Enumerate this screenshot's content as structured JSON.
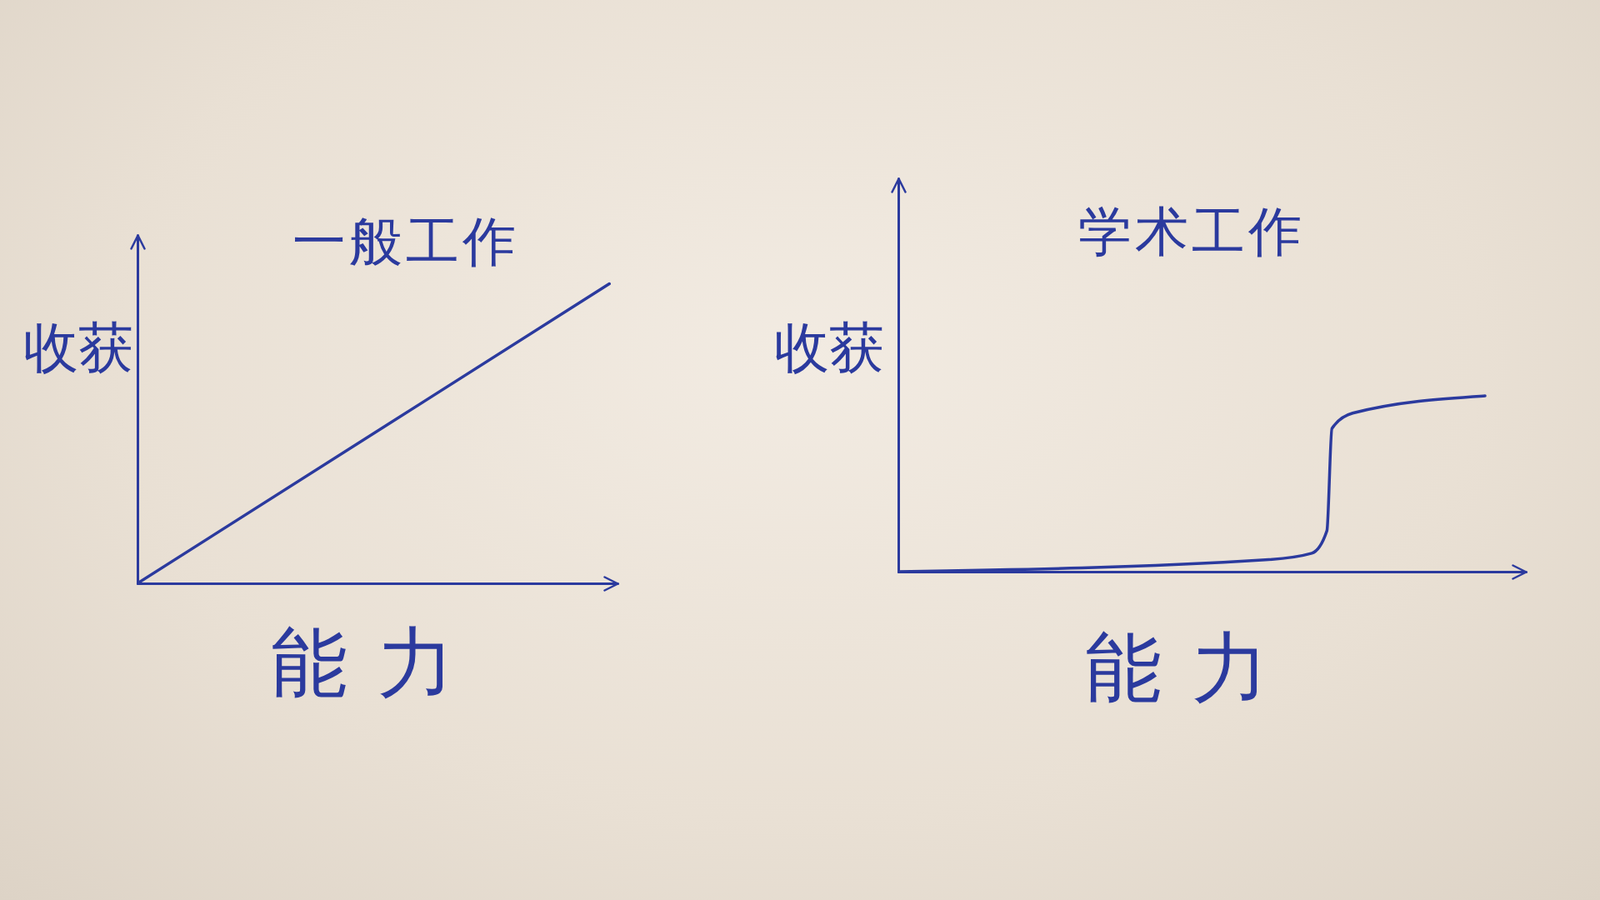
{
  "chart_data": [
    {
      "type": "line",
      "title": "一般工作",
      "x_label": "能力",
      "y_label": "收获",
      "x": [
        0,
        9.83
      ],
      "values": [
        0,
        8.6
      ],
      "xlim": [
        0,
        10
      ],
      "ylim": [
        0,
        10
      ],
      "color": "#2b3a9e",
      "tick_labels": false
    },
    {
      "type": "line",
      "title": "学术工作",
      "x_label": "能力",
      "y_label": "收获",
      "x": [
        0,
        5.85,
        6.59,
        6.83,
        6.91,
        7.24,
        9.35
      ],
      "values": [
        0,
        0.3,
        0.47,
        1.04,
        3.64,
        4.03,
        4.47
      ],
      "xlim": [
        0,
        10
      ],
      "ylim": [
        0,
        10
      ],
      "color": "#2b3a9e",
      "tick_labels": false
    }
  ]
}
